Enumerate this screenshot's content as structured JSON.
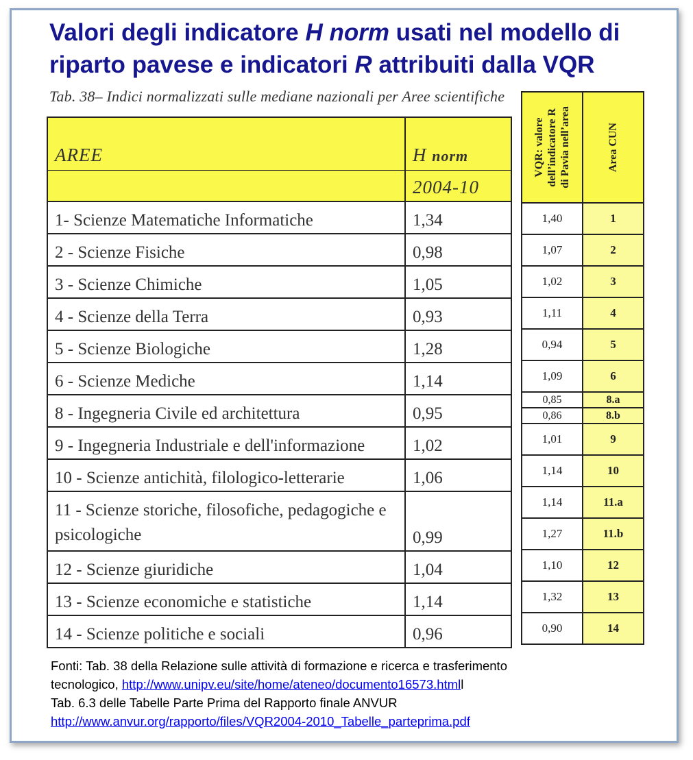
{
  "title": {
    "part1": "Valori degli indicatore ",
    "em1": "H norm",
    "part2": " usati nel modello di riparto pavese e indicatori ",
    "em2": "R",
    "part3": " attribuiti dalla VQR"
  },
  "caption": "Tab. 38– Indici normalizzati sulle mediane nazionali per Aree scientifiche",
  "main_table": {
    "header_area": "AREE",
    "header_h": "H",
    "header_norm": "norm",
    "header_period": "2004-10",
    "rows": [
      {
        "area": "1- Scienze Matematiche Informatiche",
        "h": "1,34"
      },
      {
        "area": "2 - Scienze Fisiche",
        "h": "0,98"
      },
      {
        "area": "3 - Scienze Chimiche",
        "h": "1,05"
      },
      {
        "area": "4 - Scienze della Terra",
        "h": "0,93"
      },
      {
        "area": "5 - Scienze Biologiche",
        "h": "1,28"
      },
      {
        "area": "6 - Scienze Mediche",
        "h": "1,14"
      },
      {
        "area": "8 - Ingegneria Civile ed architettura",
        "h": "0,95"
      },
      {
        "area": "9 - Ingegneria Industriale e dell'informazione",
        "h": "1,02"
      },
      {
        "area": "10 - Scienze antichità, filologico-letterarie",
        "h": "1,06"
      },
      {
        "area": "11 - Scienze storiche, filosofiche, pedagogiche e psicologiche",
        "h": "0,99"
      },
      {
        "area": "12 - Scienze giuridiche",
        "h": "1,04"
      },
      {
        "area": "13 - Scienze economiche e statistiche",
        "h": "1,14"
      },
      {
        "area": "14 - Scienze politiche e sociali",
        "h": "0,96"
      }
    ]
  },
  "side_table": {
    "header_r": "VQR: valore\ndell’indicatore R\ndi Pavia nell’area",
    "header_cun": "Area CUN",
    "rows": [
      {
        "r": "1,40",
        "cun": "1"
      },
      {
        "r": "1,07",
        "cun": "2"
      },
      {
        "r": "1,02",
        "cun": "3"
      },
      {
        "r": "1,11",
        "cun": "4"
      },
      {
        "r": "0,94",
        "cun": "5"
      },
      {
        "r": "1,09",
        "cun": "6"
      },
      {
        "r": "0,85",
        "cun": "8.a"
      },
      {
        "r": "0,86",
        "cun": "8.b"
      },
      {
        "r": "1,01",
        "cun": "9"
      },
      {
        "r": "1,14",
        "cun": "10"
      },
      {
        "r": "1,14",
        "cun": "11.a"
      },
      {
        "r": "1,27",
        "cun": "11.b"
      },
      {
        "r": "1,10",
        "cun": "12"
      },
      {
        "r": "1,32",
        "cun": "13"
      },
      {
        "r": "0,90",
        "cun": "14"
      }
    ]
  },
  "footer": {
    "line1": "Fonti: Tab. 38 della Relazione sulle attività di formazione e ricerca e trasferimento",
    "line2_prefix": "tecnologico, ",
    "link1": "http://www.unipv.eu/site/home/ateneo/documento16573.html",
    "line2_suffix": "l",
    "line3": "Tab. 6.3 delle Tabelle Parte Prima del Rapporto finale ANVUR",
    "link2": "http://www.anvur.org/rapporto/files/VQR2004-2010_Tabelle_parteprima.pdf"
  }
}
